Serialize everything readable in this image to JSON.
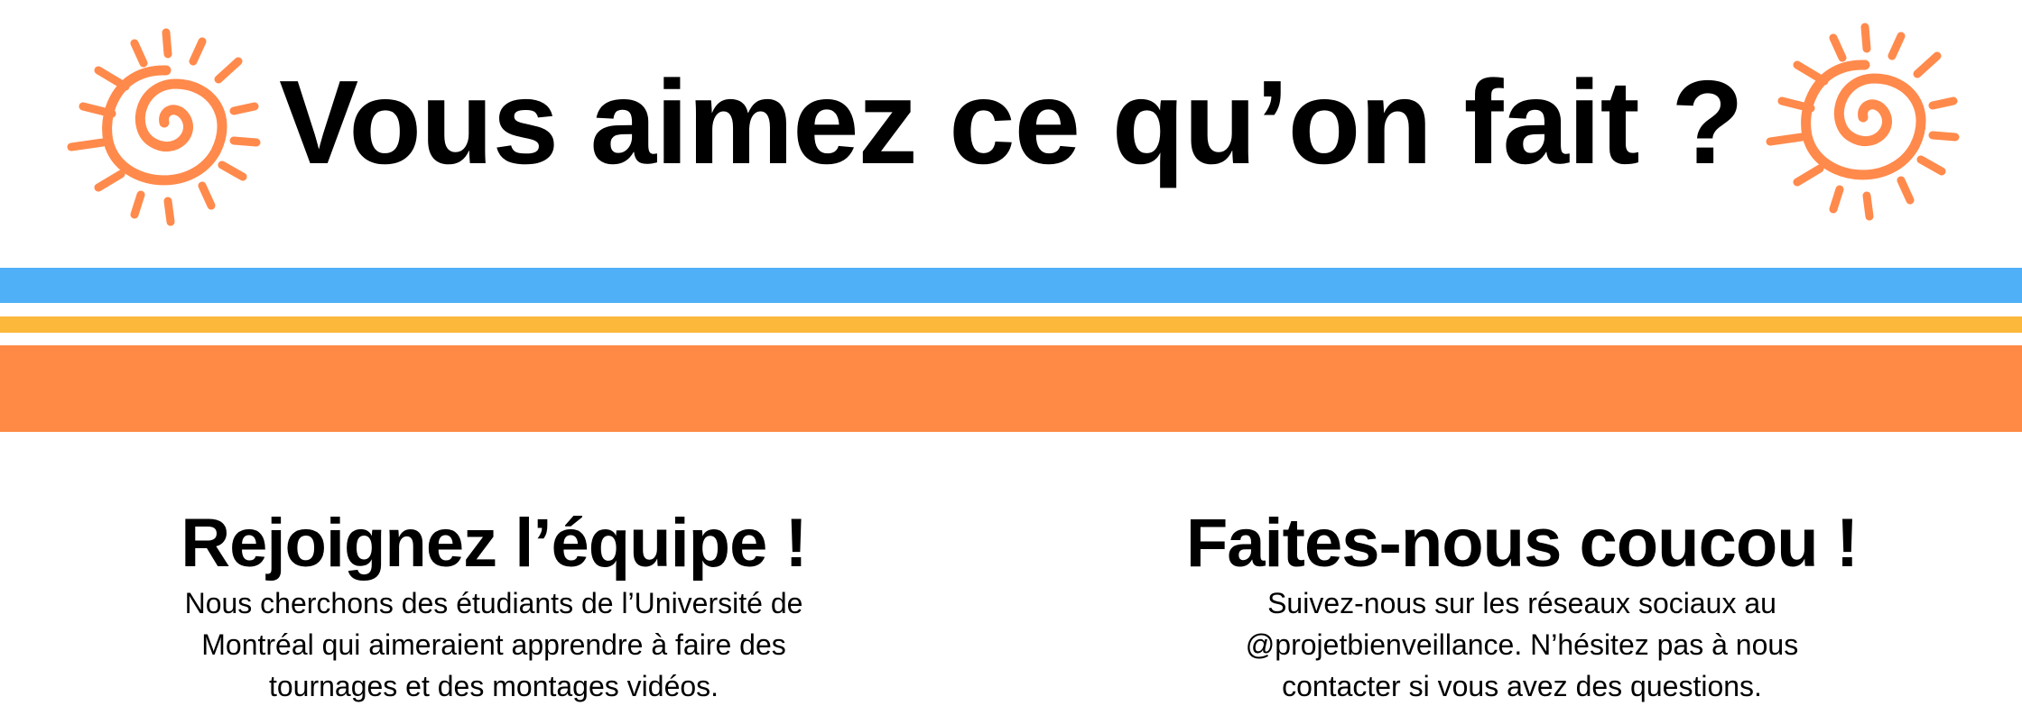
{
  "header": {
    "title": "Vous aimez ce qu’on fait ?"
  },
  "sections": [
    {
      "heading": "Rejoignez l’équipe !",
      "lines": [
        "Nous cherchons des étudiants de l’Université de",
        "Montréal qui aimeraient apprendre à faire des",
        "tournages et des montages vidéos."
      ]
    },
    {
      "heading": "Faites-nous coucou !",
      "lines": [
        "Suivez-nous sur les réseaux sociaux au",
        "@projetbienveillance. N’hésitez pas à nous",
        "contacter si vous avez des questions."
      ]
    }
  ]
}
